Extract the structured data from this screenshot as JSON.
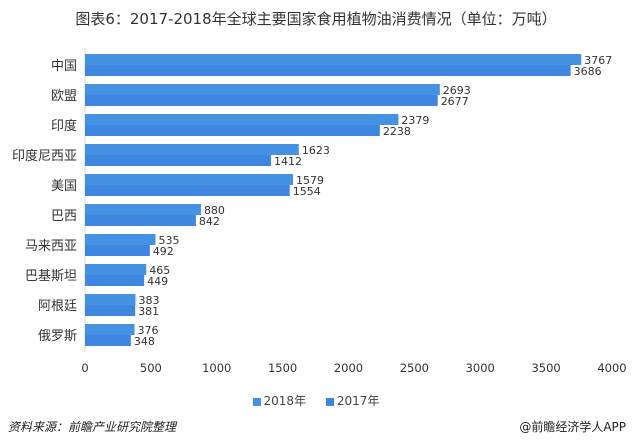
{
  "title": "图表6：2017-2018年全球主要国家食用植物油消费情况（单位：万吨）",
  "chart_data": {
    "type": "bar",
    "orientation": "horizontal",
    "title": "图表6：2017-2018年全球主要国家食用植物油消费情况（单位：万吨）",
    "categories": [
      "中国",
      "欧盟",
      "印度",
      "印度尼西亚",
      "美国",
      "巴西",
      "马来西亚",
      "巴基斯坦",
      "阿根廷",
      "俄罗斯"
    ],
    "series": [
      {
        "name": "2018年",
        "color": "#4592e3",
        "values": [
          3767,
          2693,
          2379,
          1623,
          1579,
          880,
          535,
          465,
          383,
          376
        ]
      },
      {
        "name": "2017年",
        "color": "#3f86e0",
        "values": [
          3686,
          2677,
          2238,
          1412,
          1554,
          842,
          492,
          449,
          381,
          348
        ]
      }
    ],
    "xlim": [
      0,
      4000
    ],
    "xticks": [
      0,
      500,
      1000,
      1500,
      2000,
      2500,
      3000,
      3500,
      4000
    ],
    "grid": false,
    "legend_position": "bottom"
  },
  "footer": {
    "source": "资料来源：前瞻产业研究院整理",
    "brand": "@前瞻经济学人APP"
  }
}
